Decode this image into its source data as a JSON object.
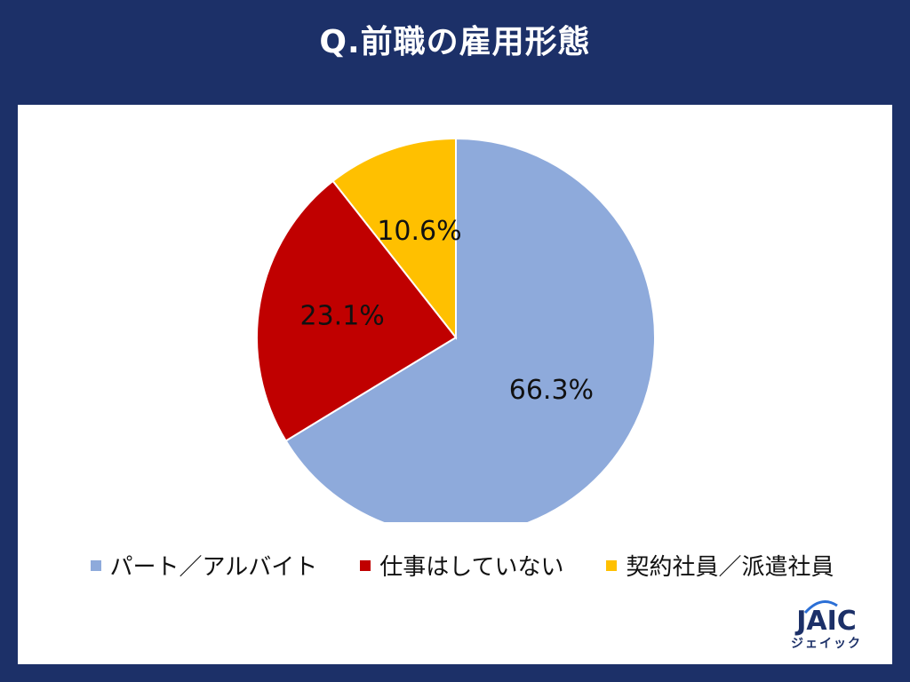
{
  "title": "Q.前職の雇用形態",
  "chart_data": {
    "type": "pie",
    "title": "Q.前職の雇用形態",
    "start": "12 o'clock, clockwise",
    "slices": [
      {
        "label": "パート／アルバイト",
        "value": 66.3,
        "value_label": "66.3%",
        "color": "#8eaadb"
      },
      {
        "label": "仕事はしていない",
        "value": 23.1,
        "value_label": "23.1%",
        "color": "#c00000"
      },
      {
        "label": "契約社員／派遣社員",
        "value": 10.6,
        "value_label": "10.6%",
        "color": "#ffc000"
      }
    ],
    "legend_position": "bottom"
  },
  "logo": {
    "text": "JAIC",
    "kana": "ジェイック"
  }
}
